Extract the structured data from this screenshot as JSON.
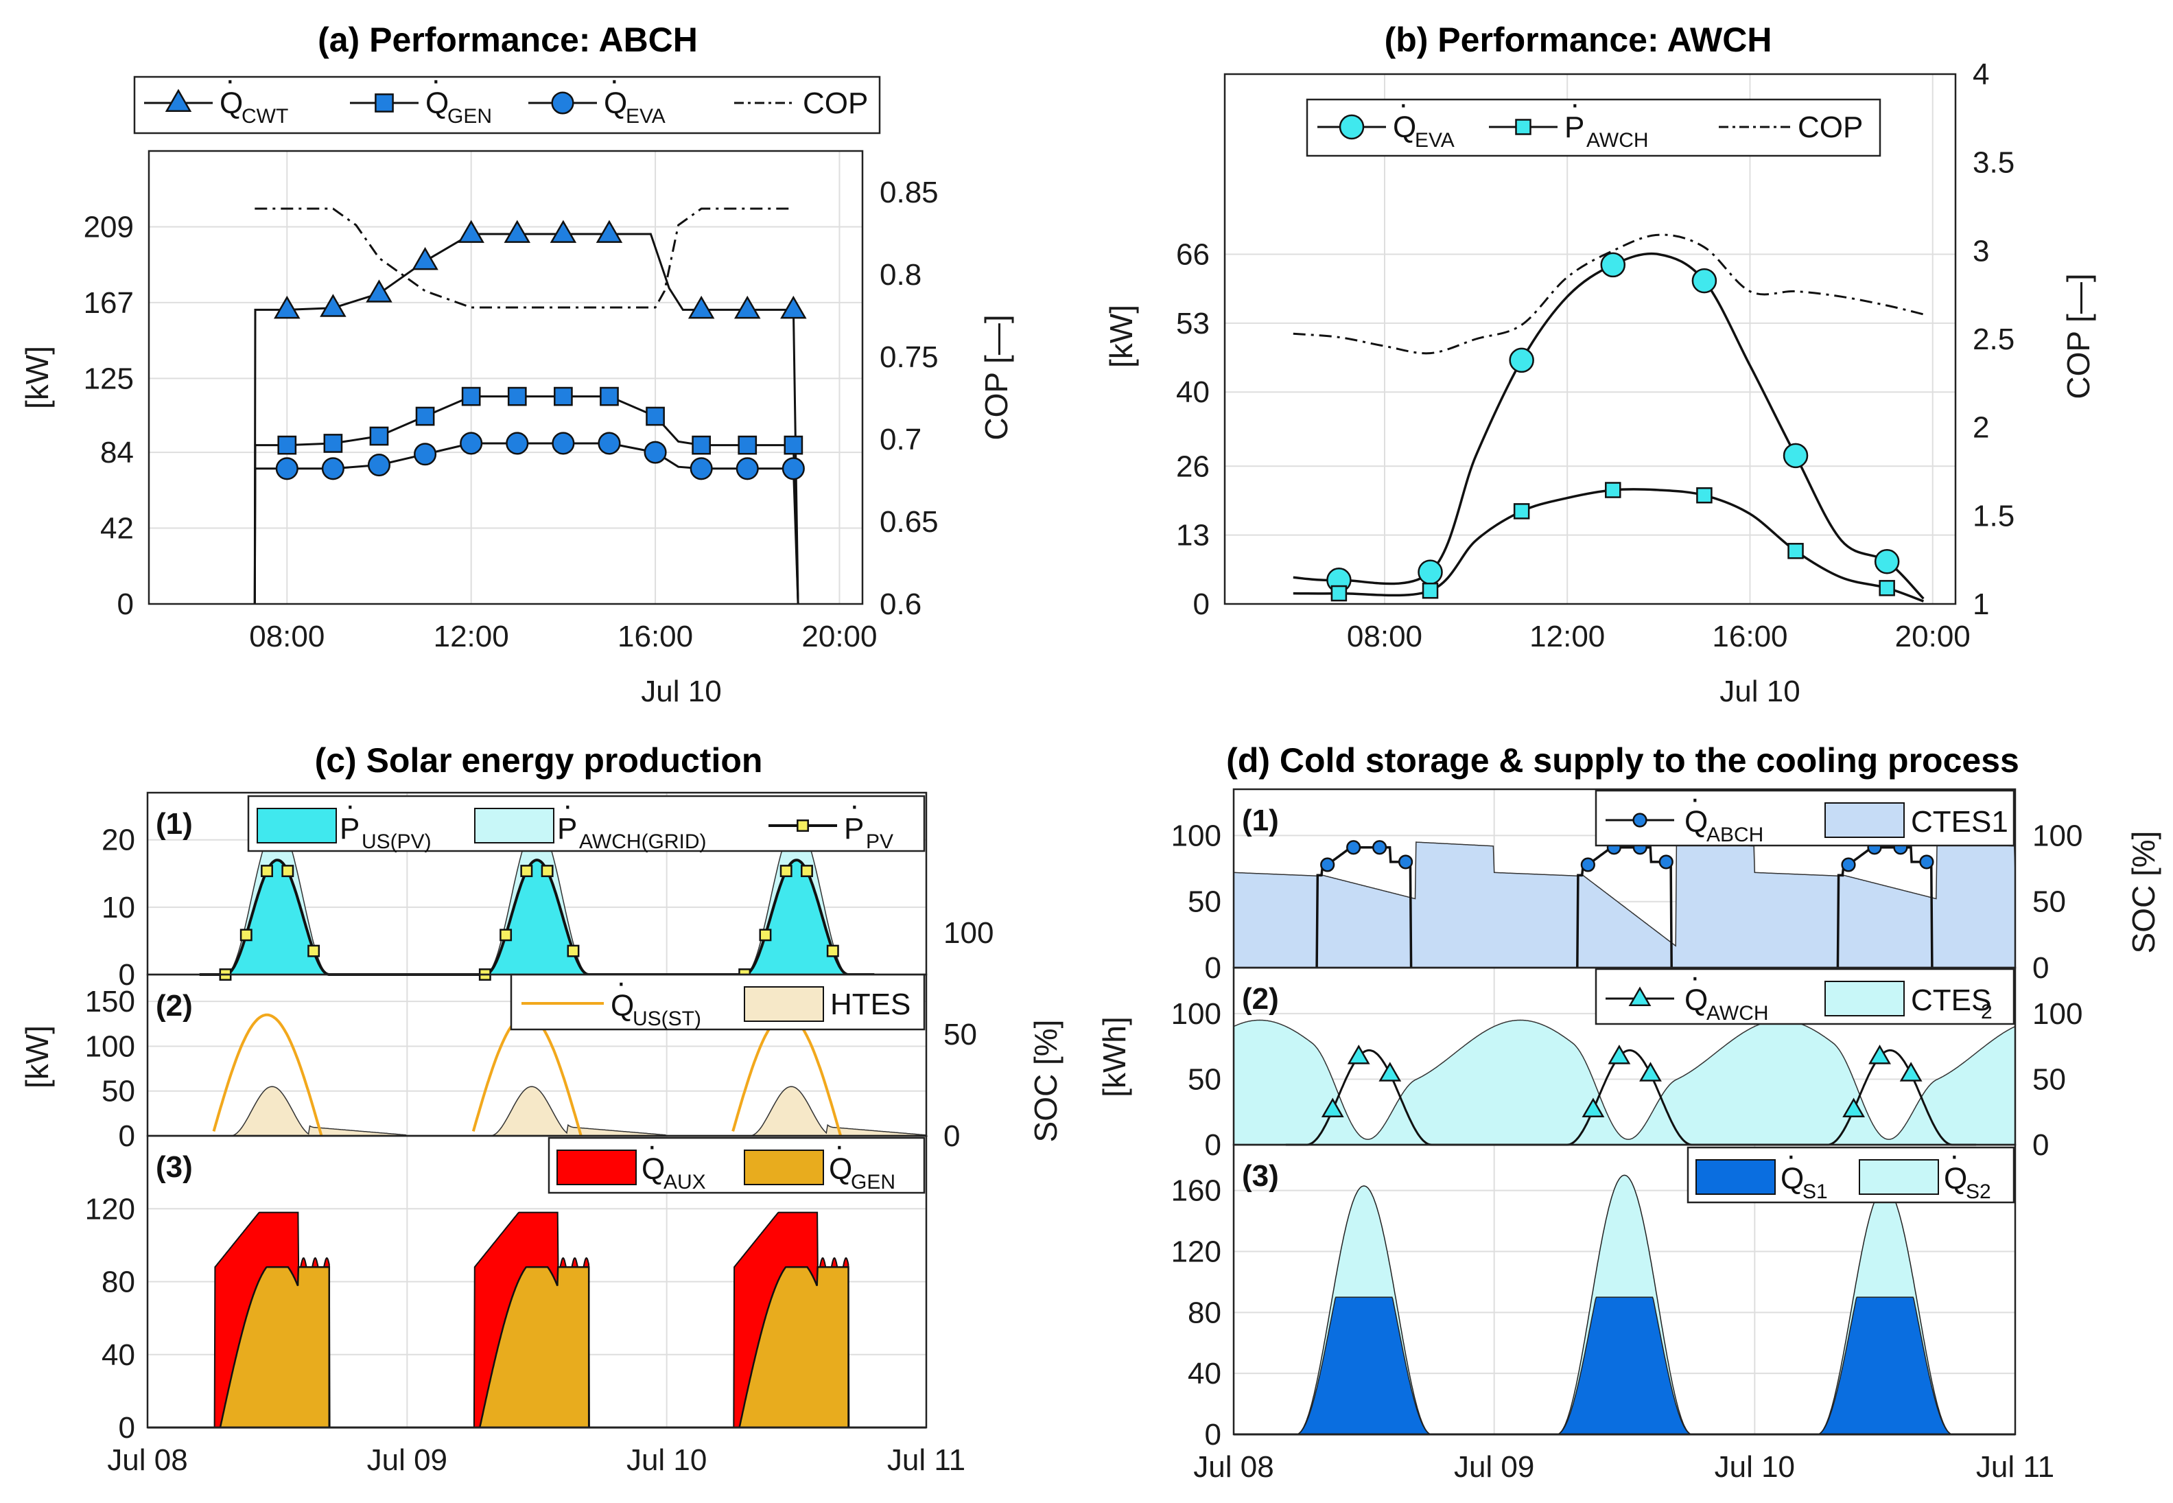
{
  "colors": {
    "cyan": "#40e8ee",
    "lightcyan": "#c8f7f8",
    "blue": "#1f7fe0",
    "lightblue": "#c6dcf6",
    "darkblue": "#0a6ee0",
    "orange": "#f2a81c",
    "beige": "#f6e8c8",
    "red": "#ff0000",
    "gold": "#e8ac1e",
    "rightaxis": "#e05a10"
  },
  "chart_data": [
    {
      "id": "a",
      "type": "line",
      "title": "(a) Performance: ABCH",
      "ylabel": "[kW]",
      "y2label": "COP [—]",
      "xlabel": "Jul 10",
      "ylim": [
        0,
        251
      ],
      "y2lim": [
        0.6,
        0.875
      ],
      "xlim": [
        5,
        20.5
      ],
      "xticks": [
        8,
        12,
        16,
        20
      ],
      "xticklabels": [
        "08:00",
        "12:00",
        "16:00",
        "20:00"
      ],
      "yticks": [
        0,
        42,
        84,
        125,
        167,
        209
      ],
      "y2ticks": [
        0.6,
        0.65,
        0.7,
        0.75,
        0.8,
        0.85
      ],
      "legend": [
        {
          "dot": "Q",
          "sub": "CWT",
          "marker": "triangle"
        },
        {
          "dot": "Q",
          "sub": "GEN",
          "marker": "square"
        },
        {
          "dot": "Q",
          "sub": "EVA",
          "marker": "circle"
        },
        {
          "dot": "",
          "sub": "",
          "text": "COP",
          "marker": "dashdot"
        }
      ],
      "series": [
        {
          "name": "Q_CWT",
          "x": [
            7.3,
            7.31,
            8,
            9,
            10,
            11,
            12,
            13,
            14,
            15,
            15.9,
            16.3,
            16.6,
            17,
            18,
            19,
            19.1
          ],
          "values": [
            0,
            163,
            163,
            164,
            172,
            190,
            205,
            205,
            205,
            205,
            205,
            175,
            163,
            163,
            163,
            163,
            0
          ]
        },
        {
          "name": "Q_GEN",
          "x": [
            7.3,
            7.31,
            8,
            9,
            10,
            11,
            12,
            13,
            14,
            15,
            16,
            16.5,
            17,
            18,
            19,
            19.1
          ],
          "values": [
            0,
            88,
            88,
            89,
            93,
            104,
            115,
            115,
            115,
            115,
            104,
            90,
            88,
            88,
            88,
            0
          ]
        },
        {
          "name": "Q_EVA",
          "x": [
            7.3,
            7.31,
            8,
            9,
            10,
            11,
            12,
            13,
            14,
            15,
            16,
            16.5,
            17,
            18,
            19,
            19.1
          ],
          "values": [
            0,
            75,
            75,
            75,
            77,
            83,
            89,
            89,
            89,
            89,
            84,
            76,
            75,
            75,
            75,
            0
          ]
        },
        {
          "name": "COP",
          "x": [
            7.3,
            8,
            9,
            9.5,
            10,
            11,
            12,
            13,
            14,
            15,
            16,
            16.2,
            16.5,
            17,
            18,
            19
          ],
          "values": [
            0.84,
            0.84,
            0.84,
            0.83,
            0.81,
            0.79,
            0.78,
            0.78,
            0.78,
            0.78,
            0.78,
            0.79,
            0.83,
            0.84,
            0.84,
            0.84
          ]
        }
      ]
    },
    {
      "id": "b",
      "type": "line",
      "title": "(b) Performance: AWCH",
      "ylabel": "[kW]",
      "y2label": "COP [—]",
      "xlabel": "Jul 10",
      "ylim": [
        0,
        100
      ],
      "y2lim": [
        1,
        4
      ],
      "xlim": [
        4.5,
        20.5
      ],
      "xticks": [
        8,
        12,
        16,
        20
      ],
      "xticklabels": [
        "08:00",
        "12:00",
        "16:00",
        "20:00"
      ],
      "yticks": [
        0,
        13,
        26,
        40,
        53,
        66
      ],
      "y2ticks": [
        1,
        1.5,
        2,
        2.5,
        3,
        3.5,
        4
      ],
      "legend": [
        {
          "dot": "Q",
          "sub": "EVA",
          "marker": "circle"
        },
        {
          "dot": "P",
          "sub": "AWCH",
          "marker": "square"
        },
        {
          "dot": "",
          "sub": "",
          "text": "COP",
          "marker": "dashdot"
        }
      ],
      "series": [
        {
          "name": "Q_EVA",
          "x": [
            6,
            7,
            9,
            10,
            11,
            12,
            13,
            14,
            15,
            16,
            17,
            18,
            19,
            19.8
          ],
          "values": [
            5,
            4.5,
            6,
            28,
            46,
            58,
            64,
            66,
            61,
            45,
            28,
            12,
            8,
            1
          ]
        },
        {
          "name": "P_AWCH",
          "x": [
            6,
            7,
            9,
            10,
            11,
            12,
            13,
            14,
            15,
            16,
            17,
            18,
            19,
            19.8
          ],
          "values": [
            2,
            2,
            2.5,
            12,
            17.5,
            20,
            21.5,
            21.5,
            20.5,
            17,
            10,
            5,
            3,
            0.5
          ]
        },
        {
          "name": "COP",
          "x": [
            6,
            7,
            8,
            9,
            10,
            11,
            12,
            13,
            14,
            15,
            16,
            17,
            18,
            19,
            19.8
          ],
          "values": [
            2.53,
            2.51,
            2.46,
            2.42,
            2.5,
            2.58,
            2.85,
            3.0,
            3.09,
            3.02,
            2.77,
            2.77,
            2.74,
            2.69,
            2.64
          ]
        }
      ]
    },
    {
      "id": "c",
      "type": "area",
      "title": "(c) Solar energy production",
      "ylabel": "[kW]",
      "y2label": "SOC [%]",
      "xticklabels": [
        "Jul 08",
        "Jul 09",
        "Jul 10",
        "Jul 11"
      ],
      "panels": [
        {
          "label": "(1)",
          "ylim": [
            0,
            27
          ],
          "yticks": [
            0,
            10,
            20
          ],
          "legend": [
            {
              "dot": "P",
              "sub": "US(PV)"
            },
            {
              "dot": "P",
              "sub": "AWCH(GRID)"
            },
            {
              "dot": "P",
              "sub": "PV"
            }
          ],
          "pv_peak": 17,
          "grid_peak": 22.5,
          "pv_markers": [
            12,
            17,
            10
          ]
        },
        {
          "label": "(2)",
          "ylim": [
            0,
            180
          ],
          "yticks": [
            0,
            50,
            100,
            150
          ],
          "y2ticks": [
            0,
            50,
            100
          ],
          "legend": [
            {
              "dot": "Q",
              "sub": "US(ST)"
            },
            {
              "dot": "",
              "sub": "",
              "text": "HTES"
            }
          ],
          "st_peak": 135,
          "htes_peak": 55
        },
        {
          "label": "(3)",
          "ylim": [
            0,
            160
          ],
          "yticks": [
            0,
            40,
            80,
            120
          ],
          "legend": [
            {
              "dot": "Q",
              "sub": "AUX"
            },
            {
              "dot": "Q",
              "sub": "GEN"
            }
          ],
          "total": 118,
          "plateau": 88,
          "gen_peak": 92
        }
      ]
    },
    {
      "id": "d",
      "type": "area",
      "title": "(d) Cold storage & supply to the cooling process",
      "ylabel": "[kWh]",
      "y2label": "SOC [%]",
      "xticklabels": [
        "Jul 08",
        "Jul 09",
        "Jul 10",
        "Jul 11"
      ],
      "panels": [
        {
          "label": "(1)",
          "ylim": [
            0,
            135
          ],
          "yticks": [
            0,
            50,
            100
          ],
          "y2ticks": [
            0,
            50,
            100
          ],
          "legend": [
            {
              "dot": "Q",
              "sub": "ABCH"
            },
            {
              "dot": "",
              "sub": "",
              "text": "CTES1"
            }
          ],
          "abch_values": [
            75,
            91,
            89
          ]
        },
        {
          "label": "(2)",
          "ylim": [
            0,
            135
          ],
          "yticks": [
            0,
            50,
            100
          ],
          "y2ticks": [
            0,
            50,
            100
          ],
          "legend": [
            {
              "dot": "Q",
              "sub": "AWCH"
            },
            {
              "dot": "",
              "sub": "",
              "text": "CTES",
              "sub2": "2"
            }
          ],
          "awch_values": [
            5,
            30,
            50,
            60,
            28
          ]
        },
        {
          "label": "(3)",
          "ylim": [
            0,
            190
          ],
          "yticks": [
            0,
            40,
            80,
            120,
            160
          ],
          "legend": [
            {
              "dot": "Q",
              "sub": "S1"
            },
            {
              "dot": "Q",
              "sub": "S2"
            }
          ],
          "s1_plateau": 90,
          "total_peaks": [
            163,
            170,
            162
          ]
        }
      ]
    }
  ]
}
